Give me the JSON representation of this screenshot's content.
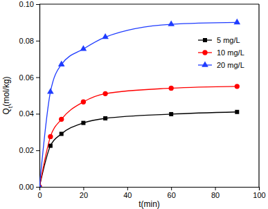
{
  "chart_data": {
    "type": "line",
    "x_label": "t(min)",
    "y_label": "Qt(mol/kg)",
    "x": [
      0,
      5,
      10,
      20,
      30,
      60,
      90
    ],
    "series": [
      {
        "name": "5 mg/L",
        "color": "#000000",
        "marker": "square",
        "line_style": "solid",
        "values": [
          0,
          0.0225,
          0.029,
          0.035,
          0.0375,
          0.0398,
          0.041
        ]
      },
      {
        "name": "10 mg/L",
        "color": "#ff0000",
        "marker": "circle",
        "line_style": "solid",
        "values": [
          0,
          0.0275,
          0.037,
          0.0465,
          0.051,
          0.054,
          0.055
        ]
      },
      {
        "name": "20 mg/L",
        "color": "#1f3cff",
        "marker": "triangle",
        "line_style": "solid",
        "values": [
          0,
          0.052,
          0.067,
          0.0755,
          0.082,
          0.089,
          0.09
        ]
      }
    ],
    "xlim": [
      0,
      100
    ],
    "xticks": [
      0,
      20,
      40,
      60,
      80,
      100
    ],
    "ylim": [
      0,
      0.1
    ],
    "yticks": [
      {
        "value": 0,
        "label": "0.00"
      },
      {
        "value": 0.02,
        "label": "0.02"
      },
      {
        "value": 0.04,
        "label": "0.04"
      },
      {
        "value": 0.06,
        "label": "0.06"
      },
      {
        "value": 0.08,
        "label": "0.08"
      },
      {
        "value": 0.1,
        "label": "0.10"
      }
    ],
    "grid": false,
    "legend": "upper right"
  }
}
